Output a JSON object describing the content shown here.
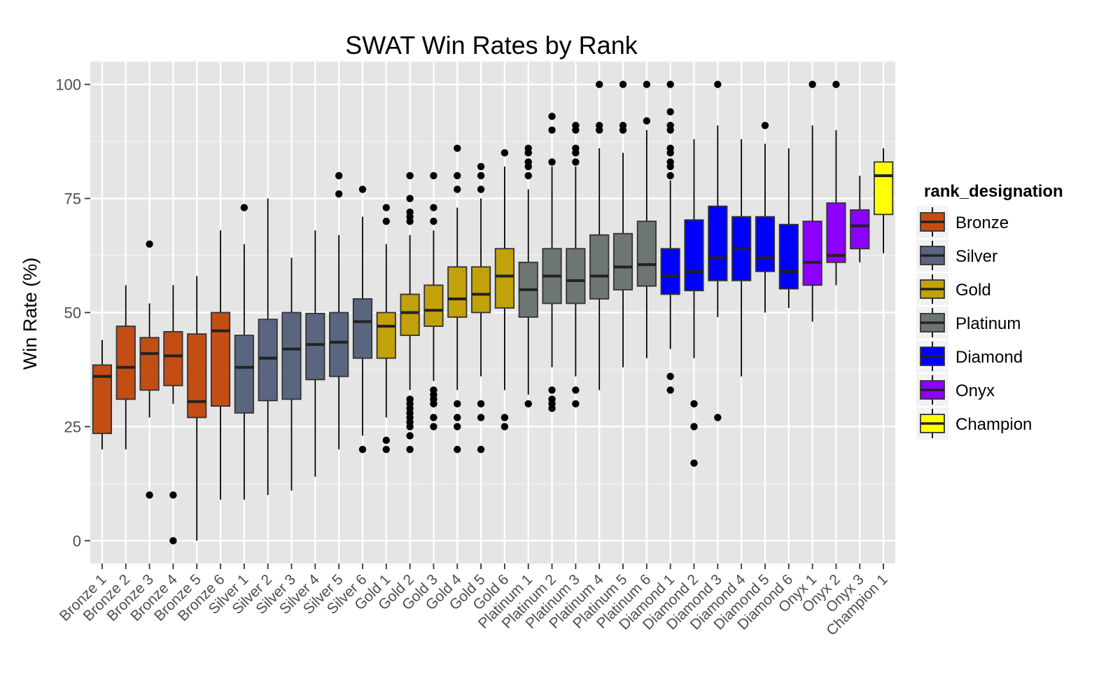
{
  "chart_data": {
    "type": "box",
    "title": "SWAT Win Rates by Rank",
    "xlabel": "",
    "ylabel": "Win Rate (%)",
    "ylim": [
      -5,
      105
    ],
    "yticks": [
      0,
      25,
      50,
      75,
      100
    ],
    "grid": true,
    "legend": {
      "title": "rank_designation",
      "position": "right",
      "entries": [
        {
          "name": "Bronze",
          "color": "#C24E14"
        },
        {
          "name": "Silver",
          "color": "#5A6680"
        },
        {
          "name": "Gold",
          "color": "#C2A10A"
        },
        {
          "name": "Platinum",
          "color": "#6E7672"
        },
        {
          "name": "Diamond",
          "color": "#0000FF"
        },
        {
          "name": "Onyx",
          "color": "#8C00FF"
        },
        {
          "name": "Champion",
          "color": "#FFFF00"
        }
      ]
    },
    "boxes": [
      {
        "label": "Bronze 1",
        "group": "Bronze",
        "min": 20,
        "q1": 23.5,
        "median": 36,
        "q3": 38.5,
        "max": 44,
        "outliers": []
      },
      {
        "label": "Bronze 2",
        "group": "Bronze",
        "min": 20,
        "q1": 31,
        "median": 38,
        "q3": 47,
        "max": 56,
        "outliers": []
      },
      {
        "label": "Bronze 3",
        "group": "Bronze",
        "min": 27,
        "q1": 33,
        "median": 41,
        "q3": 44.5,
        "max": 52,
        "outliers": [
          65,
          10
        ]
      },
      {
        "label": "Bronze 4",
        "group": "Bronze",
        "min": 30,
        "q1": 34,
        "median": 40.5,
        "q3": 45.8,
        "max": 56,
        "outliers": [
          10,
          0
        ]
      },
      {
        "label": "Bronze 5",
        "group": "Bronze",
        "min": 0,
        "q1": 27,
        "median": 30.5,
        "q3": 45.3,
        "max": 58,
        "outliers": []
      },
      {
        "label": "Bronze 6",
        "group": "Bronze",
        "min": 9,
        "q1": 29.5,
        "median": 46,
        "q3": 50,
        "max": 68,
        "outliers": []
      },
      {
        "label": "Silver 1",
        "group": "Silver",
        "min": 9,
        "q1": 28,
        "median": 38,
        "q3": 45,
        "max": 65,
        "outliers": [
          73
        ]
      },
      {
        "label": "Silver 2",
        "group": "Silver",
        "min": 10,
        "q1": 30.7,
        "median": 40,
        "q3": 48.5,
        "max": 75,
        "outliers": []
      },
      {
        "label": "Silver 3",
        "group": "Silver",
        "min": 11,
        "q1": 31,
        "median": 42,
        "q3": 50,
        "max": 62,
        "outliers": []
      },
      {
        "label": "Silver 4",
        "group": "Silver",
        "min": 14,
        "q1": 35.3,
        "median": 43,
        "q3": 49.8,
        "max": 68,
        "outliers": []
      },
      {
        "label": "Silver 5",
        "group": "Silver",
        "min": 20,
        "q1": 36,
        "median": 43.5,
        "q3": 50,
        "max": 67,
        "outliers": [
          80,
          76
        ]
      },
      {
        "label": "Silver 6",
        "group": "Silver",
        "min": 23,
        "q1": 40,
        "median": 48,
        "q3": 53,
        "max": 71,
        "outliers": [
          77,
          20
        ]
      },
      {
        "label": "Gold 1",
        "group": "Gold",
        "min": 27,
        "q1": 40,
        "median": 47,
        "q3": 50,
        "max": 65,
        "outliers": [
          73,
          70,
          22,
          20
        ]
      },
      {
        "label": "Gold 2",
        "group": "Gold",
        "min": 33,
        "q1": 45,
        "median": 50,
        "q3": 54,
        "max": 67,
        "outliers": [
          80,
          75,
          72,
          71,
          70,
          31,
          30,
          29,
          28,
          27,
          26,
          25,
          23,
          20
        ]
      },
      {
        "label": "Gold 3",
        "group": "Gold",
        "min": 35,
        "q1": 47,
        "median": 50.5,
        "q3": 56,
        "max": 68,
        "outliers": [
          80,
          73,
          70,
          33,
          32,
          31,
          30,
          27,
          25
        ]
      },
      {
        "label": "Gold 4",
        "group": "Gold",
        "min": 33,
        "q1": 49,
        "median": 53,
        "q3": 60,
        "max": 73,
        "outliers": [
          86,
          80,
          77,
          30,
          27,
          25,
          20
        ]
      },
      {
        "label": "Gold 5",
        "group": "Gold",
        "min": 36,
        "q1": 50,
        "median": 54,
        "q3": 60,
        "max": 75,
        "outliers": [
          82,
          80,
          77,
          30,
          27,
          20
        ]
      },
      {
        "label": "Gold 6",
        "group": "Gold",
        "min": 33,
        "q1": 51,
        "median": 58,
        "q3": 64,
        "max": 82,
        "outliers": [
          85,
          27,
          25
        ]
      },
      {
        "label": "Platinum 1",
        "group": "Platinum",
        "min": 32,
        "q1": 49,
        "median": 55,
        "q3": 61,
        "max": 77,
        "outliers": [
          86,
          85,
          83,
          82,
          80,
          30
        ]
      },
      {
        "label": "Platinum 2",
        "group": "Platinum",
        "min": 38,
        "q1": 52,
        "median": 58,
        "q3": 64,
        "max": 82,
        "outliers": [
          93,
          90,
          83,
          33,
          31,
          30,
          29
        ]
      },
      {
        "label": "Platinum 3",
        "group": "Platinum",
        "min": 36,
        "q1": 52,
        "median": 57,
        "q3": 64,
        "max": 82,
        "outliers": [
          91,
          90,
          86,
          85,
          83,
          33,
          30
        ]
      },
      {
        "label": "Platinum 4",
        "group": "Platinum",
        "min": 33,
        "q1": 53,
        "median": 58,
        "q3": 67,
        "max": 86,
        "outliers": [
          100,
          91,
          90
        ]
      },
      {
        "label": "Platinum 5",
        "group": "Platinum",
        "min": 38,
        "q1": 55,
        "median": 60,
        "q3": 67.3,
        "max": 85,
        "outliers": [
          100,
          91,
          90
        ]
      },
      {
        "label": "Platinum 6",
        "group": "Platinum",
        "min": 40,
        "q1": 55.8,
        "median": 60.5,
        "q3": 70,
        "max": 90,
        "outliers": [
          100,
          92
        ]
      },
      {
        "label": "Diamond 1",
        "group": "Diamond",
        "min": 42,
        "q1": 54,
        "median": 58,
        "q3": 64,
        "max": 79,
        "outliers": [
          100,
          94,
          91,
          90,
          86,
          85,
          83,
          82,
          80,
          36,
          33
        ]
      },
      {
        "label": "Diamond 2",
        "group": "Diamond",
        "min": 40,
        "q1": 54.8,
        "median": 59,
        "q3": 70.3,
        "max": 88,
        "outliers": [
          30,
          25,
          17
        ]
      },
      {
        "label": "Diamond 3",
        "group": "Diamond",
        "min": 49,
        "q1": 57,
        "median": 62,
        "q3": 73.3,
        "max": 91,
        "outliers": [
          100,
          27
        ]
      },
      {
        "label": "Diamond 4",
        "group": "Diamond",
        "min": 36,
        "q1": 57,
        "median": 64,
        "q3": 71,
        "max": 88,
        "outliers": []
      },
      {
        "label": "Diamond 5",
        "group": "Diamond",
        "min": 50,
        "q1": 59,
        "median": 62,
        "q3": 71,
        "max": 87,
        "outliers": [
          91
        ]
      },
      {
        "label": "Diamond 6",
        "group": "Diamond",
        "min": 51,
        "q1": 55.2,
        "median": 59,
        "q3": 69.3,
        "max": 86,
        "outliers": []
      },
      {
        "label": "Onyx 1",
        "group": "Onyx",
        "min": 48,
        "q1": 56,
        "median": 61,
        "q3": 70,
        "max": 91,
        "outliers": [
          100
        ]
      },
      {
        "label": "Onyx 2",
        "group": "Onyx",
        "min": 56,
        "q1": 61,
        "median": 62.5,
        "q3": 74,
        "max": 90,
        "outliers": [
          100
        ]
      },
      {
        "label": "Onyx 3",
        "group": "Onyx",
        "min": 61,
        "q1": 64,
        "median": 69,
        "q3": 72.5,
        "max": 80,
        "outliers": []
      },
      {
        "label": "Champion 1",
        "group": "Champion",
        "min": 63,
        "q1": 71.5,
        "median": 80,
        "q3": 83,
        "max": 86,
        "outliers": []
      }
    ]
  }
}
